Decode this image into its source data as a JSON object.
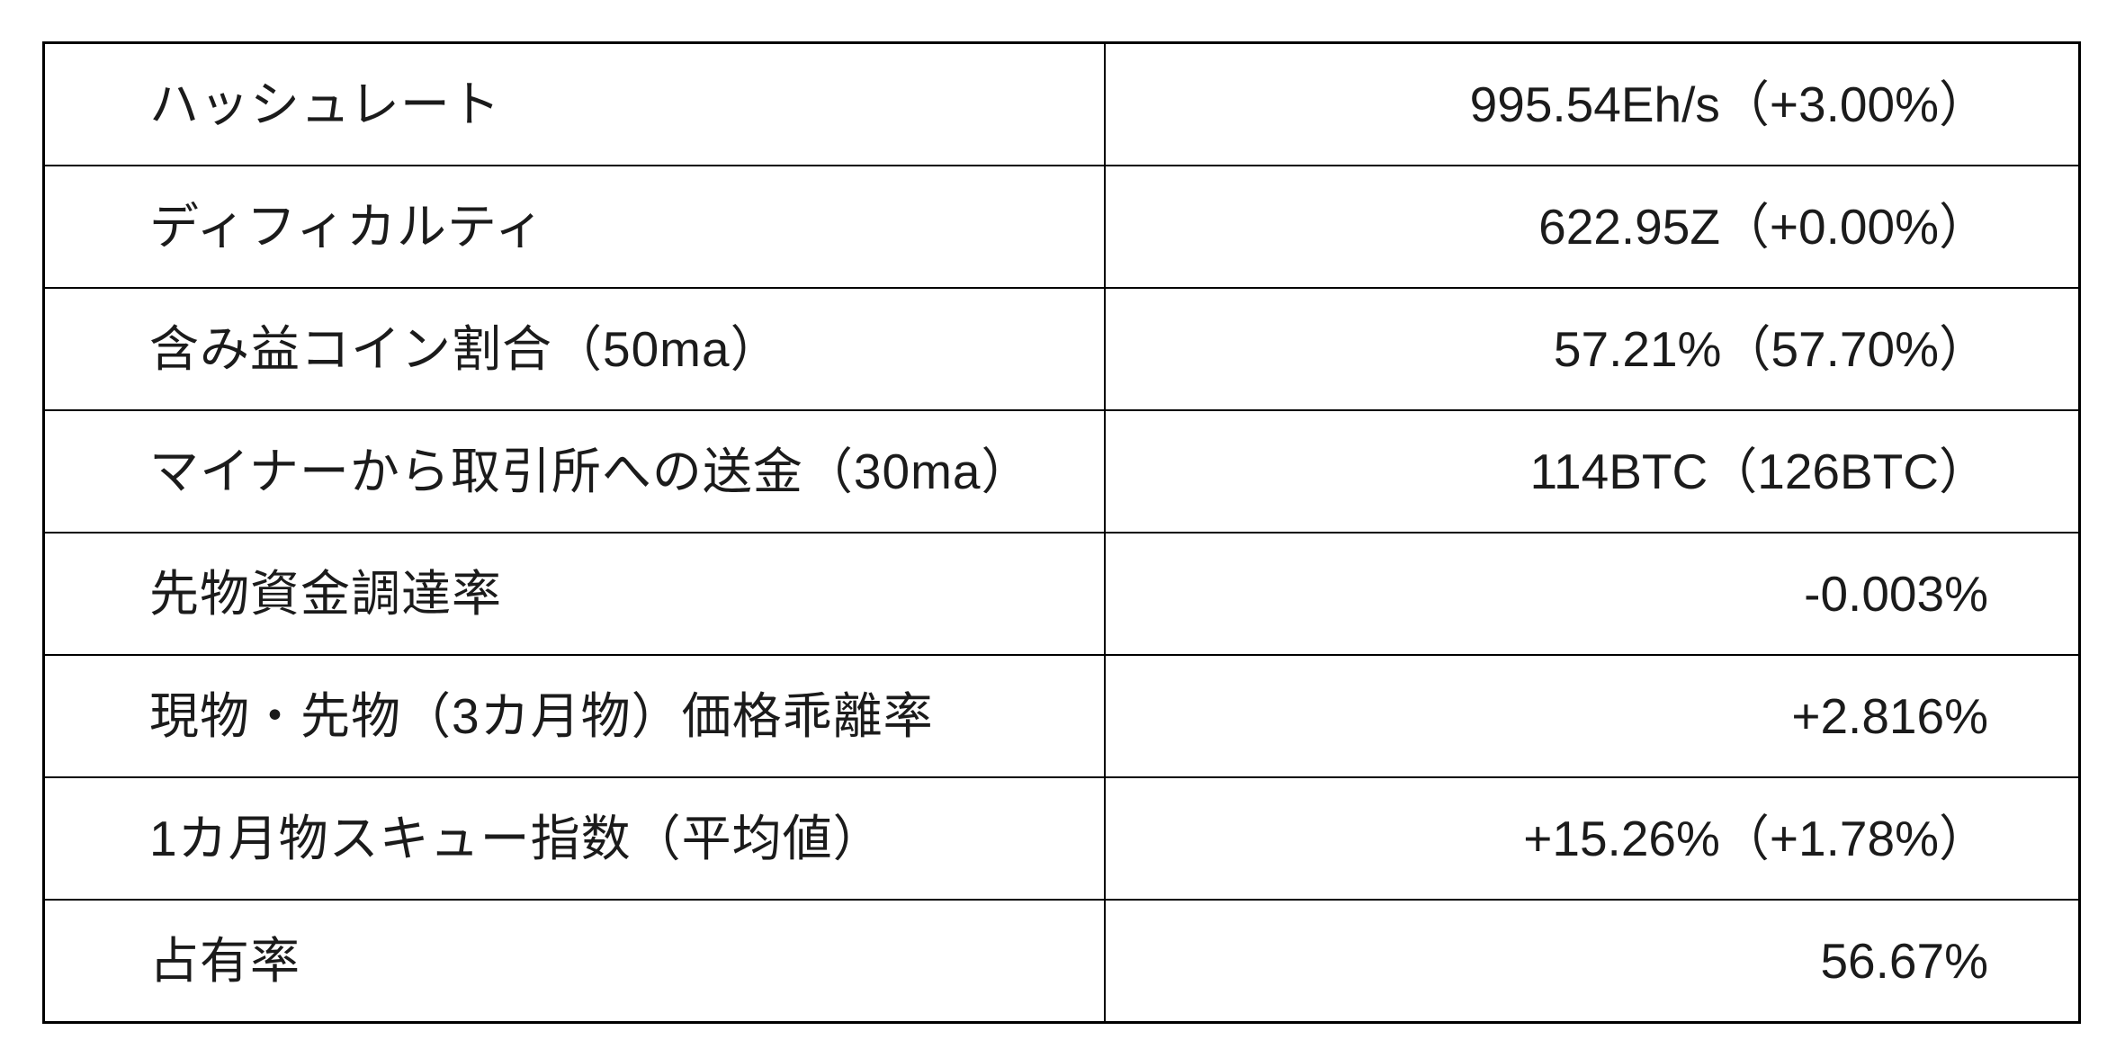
{
  "chart_data": {
    "type": "table",
    "grid": "on",
    "columns_visible_headers": [],
    "rows": [
      {
        "label": "ハッシュレート",
        "value": "995.54Eh/s（+3.00%）"
      },
      {
        "label": "ディフィカルティ",
        "value": "622.95Z（+0.00%）"
      },
      {
        "label": "含み益コイン割合（50ma）",
        "value": "57.21%（57.70%）"
      },
      {
        "label": "マイナーから取引所への送金（30ma）",
        "value": "114BTC（126BTC）"
      },
      {
        "label": "先物資金調達率",
        "value": "-0.003%"
      },
      {
        "label": "現物・先物（3カ月物）価格乖離率",
        "value": "+2.816%"
      },
      {
        "label": "1カ月物スキュー指数（平均値）",
        "value": "+15.26%（+1.78%）"
      },
      {
        "label": "占有率",
        "value": "56.67%"
      }
    ]
  },
  "style": {
    "border_color": "#000000",
    "text_color": "#1b1b1b",
    "background_color": "#ffffff"
  }
}
